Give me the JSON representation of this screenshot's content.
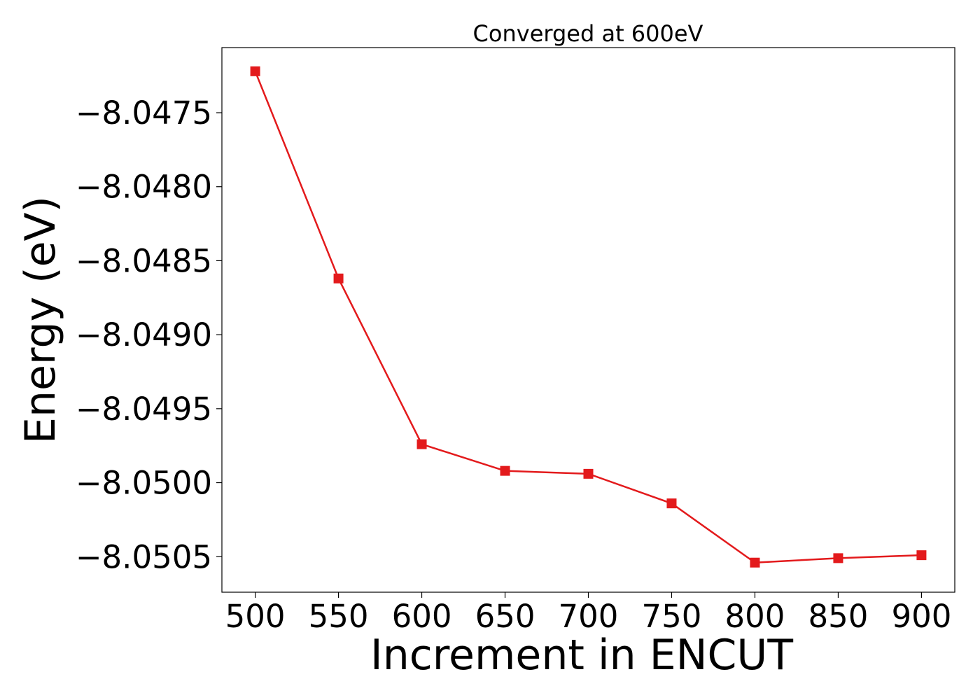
{
  "chart_data": {
    "type": "line",
    "title": "Converged at 600eV",
    "xlabel": "Increment in ENCUT",
    "ylabel": "Energy (eV)",
    "x": [
      500,
      550,
      600,
      650,
      700,
      750,
      800,
      850,
      900
    ],
    "series": [
      {
        "values": [
          -8.04722,
          -8.04862,
          -8.04974,
          -8.04992,
          -8.04994,
          -8.05014,
          -8.05054,
          -8.05051,
          -8.05049
        ],
        "color": "#e31a1c",
        "marker": "square"
      }
    ],
    "xticks": [
      500,
      550,
      600,
      650,
      700,
      750,
      800,
      850,
      900
    ],
    "xtick_labels": [
      "500",
      "550",
      "600",
      "650",
      "700",
      "750",
      "800",
      "850",
      "900"
    ],
    "yticks": [
      -8.0475,
      -8.048,
      -8.0485,
      -8.049,
      -8.0495,
      -8.05,
      -8.0505
    ],
    "ytick_labels": [
      "−8.0475",
      "−8.0480",
      "−8.0485",
      "−8.0490",
      "−8.0495",
      "−8.0500",
      "−8.0505"
    ],
    "xlim": [
      480,
      920
    ],
    "ylim": [
      -8.05074,
      -8.04706
    ],
    "grid": false,
    "legend": "none"
  }
}
